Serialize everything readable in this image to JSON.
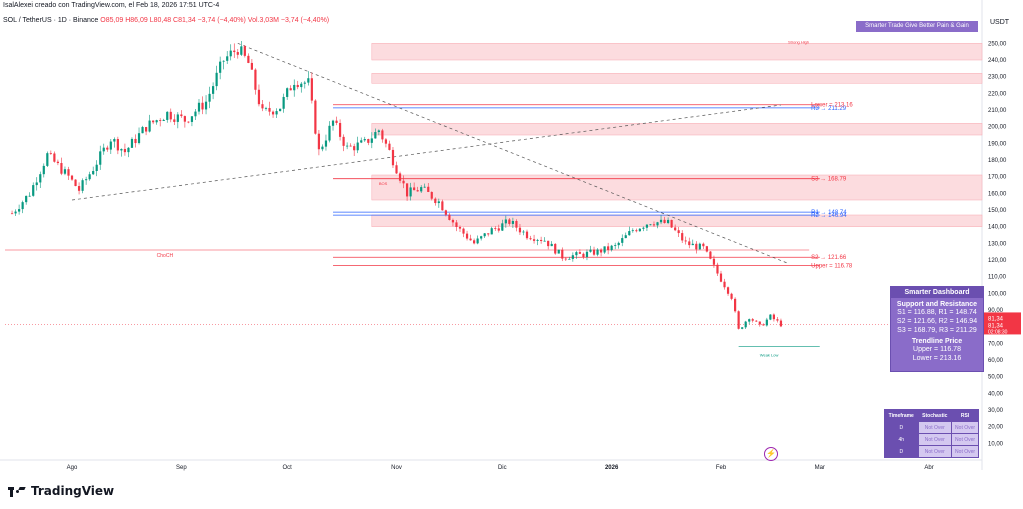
{
  "header": {
    "publisher": "IsalAlexei creado con TradingView.com, el Feb 18, 2026 17:51 UTC-4",
    "symbol": "SOL / TetherUS · 1D · Binance",
    "ohlc": "O85,09  H86,09  L80,48  C81,34  −3,74 (−4,40%)",
    "volume": "Vol.3,03M  −3,74 (−4,40%)"
  },
  "price_axis": {
    "currency": "USDT",
    "last_price": "81,34",
    "last_price_label": "81,34",
    "countdown": "02:08:30",
    "symbol_tag": "SOLUSDT",
    "colors": {
      "up": "#089981",
      "down": "#f23645"
    }
  },
  "chart_data": {
    "type": "candlestick",
    "x_labels": [
      "Ago",
      "Sep",
      "Oct",
      "Nov",
      "Dic",
      "2026",
      "Feb",
      "Mar",
      "Abr"
    ],
    "y_ticks": [
      250,
      240,
      230,
      220,
      210,
      200,
      190,
      180,
      170,
      160,
      150,
      140,
      130,
      120,
      110,
      100,
      90,
      80,
      70,
      60,
      50,
      40,
      30,
      20,
      10
    ],
    "y_labels": [
      "250,00",
      "240,00",
      "230,00",
      "220,00",
      "210,00",
      "200,00",
      "190,00",
      "180,00",
      "170,00",
      "160,00",
      "150,00",
      "140,00",
      "130,00",
      "120,00",
      "110,00",
      "100,00",
      "90,00",
      "80,00",
      "70,00",
      "60,00",
      "50,00",
      "40,00",
      "30,00",
      "20,00",
      "10,00"
    ],
    "ylim": [
      0,
      258
    ],
    "close_path": [
      {
        "d": "2025-07-15",
        "c": 148
      },
      {
        "d": "2025-07-20",
        "c": 160
      },
      {
        "d": "2025-07-25",
        "c": 183
      },
      {
        "d": "2025-07-31",
        "c": 170
      },
      {
        "d": "2025-08-03",
        "c": 162
      },
      {
        "d": "2025-08-07",
        "c": 175
      },
      {
        "d": "2025-08-12",
        "c": 193
      },
      {
        "d": "2025-08-16",
        "c": 185
      },
      {
        "d": "2025-08-22",
        "c": 200
      },
      {
        "d": "2025-08-28",
        "c": 208
      },
      {
        "d": "2025-09-02",
        "c": 204
      },
      {
        "d": "2025-09-08",
        "c": 215
      },
      {
        "d": "2025-09-13",
        "c": 240
      },
      {
        "d": "2025-09-17",
        "c": 247
      },
      {
        "d": "2025-09-20",
        "c": 238
      },
      {
        "d": "2025-09-24",
        "c": 208
      },
      {
        "d": "2025-09-29",
        "c": 212
      },
      {
        "d": "2025-10-03",
        "c": 228
      },
      {
        "d": "2025-10-07",
        "c": 226
      },
      {
        "d": "2025-10-10",
        "c": 185
      },
      {
        "d": "2025-10-14",
        "c": 203
      },
      {
        "d": "2025-10-18",
        "c": 187
      },
      {
        "d": "2025-10-23",
        "c": 190
      },
      {
        "d": "2025-10-27",
        "c": 198
      },
      {
        "d": "2025-10-30",
        "c": 185
      },
      {
        "d": "2025-11-04",
        "c": 160
      },
      {
        "d": "2025-11-08",
        "c": 163
      },
      {
        "d": "2025-11-13",
        "c": 155
      },
      {
        "d": "2025-11-18",
        "c": 140
      },
      {
        "d": "2025-11-23",
        "c": 130
      },
      {
        "d": "2025-11-28",
        "c": 138
      },
      {
        "d": "2025-12-03",
        "c": 143
      },
      {
        "d": "2025-12-08",
        "c": 135
      },
      {
        "d": "2025-12-13",
        "c": 132
      },
      {
        "d": "2025-12-18",
        "c": 122
      },
      {
        "d": "2025-12-23",
        "c": 123
      },
      {
        "d": "2025-12-28",
        "c": 125
      },
      {
        "d": "2026-01-02",
        "c": 128
      },
      {
        "d": "2026-01-07",
        "c": 138
      },
      {
        "d": "2026-01-12",
        "c": 143
      },
      {
        "d": "2026-01-17",
        "c": 142
      },
      {
        "d": "2026-01-22",
        "c": 130
      },
      {
        "d": "2026-01-27",
        "c": 127
      },
      {
        "d": "2026-01-31",
        "c": 112
      },
      {
        "d": "2026-02-04",
        "c": 98
      },
      {
        "d": "2026-02-06",
        "c": 78
      },
      {
        "d": "2026-02-09",
        "c": 86
      },
      {
        "d": "2026-02-12",
        "c": 80
      },
      {
        "d": "2026-02-15",
        "c": 86
      },
      {
        "d": "2026-02-18",
        "c": 81.34
      }
    ],
    "levels": [
      {
        "label": "R1 → 148.74",
        "value": 148.74,
        "color": "#2962ff"
      },
      {
        "label": "R2 → 146.94",
        "value": 146.94,
        "color": "#2962ff"
      },
      {
        "label": "R3 → 211.29",
        "value": 211.29,
        "color": "#2962ff"
      },
      {
        "label": "S2 → 121.66",
        "value": 121.66,
        "color": "#f23645"
      },
      {
        "label": "S3 → 168.79",
        "value": 168.79,
        "color": "#f23645"
      },
      {
        "label": "Upper = 116.78",
        "value": 116.78,
        "color": "#f23645"
      },
      {
        "label": "Lower = 213.16",
        "value": 213.16,
        "color": "#f23645"
      }
    ],
    "zones": [
      {
        "top": 250,
        "bottom": 240
      },
      {
        "top": 232,
        "bottom": 226
      },
      {
        "top": 202,
        "bottom": 195
      },
      {
        "top": 171,
        "bottom": 156
      },
      {
        "top": 147,
        "bottom": 140
      }
    ],
    "annotations": [
      "ChoCH",
      "BOS",
      "Strong High",
      "Weak Low"
    ]
  },
  "badge_text": "Smarter Trade Give Better Pain & Gain",
  "dashboard": {
    "title": "Smarter Dashboard",
    "sr_title": "Support and Resistance",
    "lines": [
      "S1 = 116.88, R1 = 148.74",
      "S2 = 121.66, R2 = 146.94",
      "S3 = 168.79, R3 = 211.29"
    ],
    "tl_title": "Trendline Price",
    "tl_lines": [
      "Upper = 116.78",
      "Lower = 213.16"
    ]
  },
  "stoch_table": {
    "headers": [
      "Timeframe",
      "Stochastic",
      "RSI"
    ],
    "rows": [
      [
        "D",
        "Not Over",
        "Not Over"
      ],
      [
        "4h",
        "Not Over",
        "Not Over"
      ],
      [
        "D",
        "Not Over",
        "Not Over"
      ]
    ]
  },
  "brand": "TradingView"
}
